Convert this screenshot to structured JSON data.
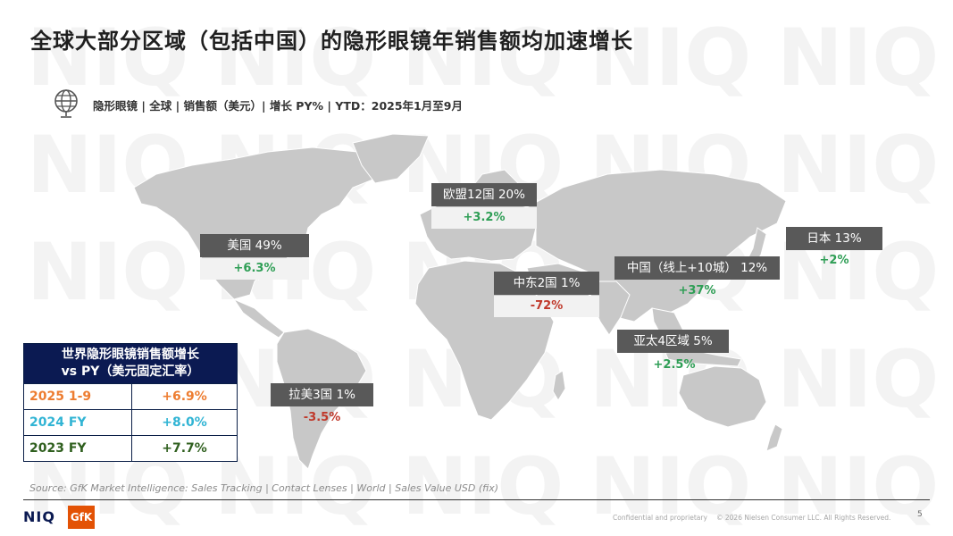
{
  "title": "全球大部分区域（包括中国）的隐形眼镜年销售额均加速增长",
  "subtitle": "隐形眼镜 | 全球 | 销售额（美元）| 增长 PY% | YTD：2025年1月至9月",
  "watermark": "NIQ",
  "icons": {
    "globe": "globe-icon",
    "niq_logo": "niq-logo",
    "gfk_logo": "gfk-logo"
  },
  "colors": {
    "positive": "#2e9e55",
    "negative": "#c0392b",
    "label_bg": "#595959",
    "map_land": "#c8c8c8",
    "table_header": "#0b1a52",
    "row_2025": "#ed7d31",
    "row_2024": "#31b4d4",
    "row_2023": "#2f5f1e"
  },
  "chart_data": {
    "type": "map",
    "regions": [
      {
        "name": "美国",
        "share": "49%",
        "growth": "+6.3%",
        "share_pct": 49,
        "growth_pct": 6.3
      },
      {
        "name": "欧盟12国",
        "share": "20%",
        "growth": "+3.2%",
        "share_pct": 20,
        "growth_pct": 3.2
      },
      {
        "name": "日本",
        "share": "13%",
        "growth": "+2%",
        "share_pct": 13,
        "growth_pct": 2
      },
      {
        "name": "中国（线上+10城）",
        "share": "12%",
        "growth": "+37%",
        "share_pct": 12,
        "growth_pct": 37
      },
      {
        "name": "中东2国",
        "share": "1%",
        "growth": "-72%",
        "share_pct": 1,
        "growth_pct": -72
      },
      {
        "name": "亚太4区域",
        "share": "5%",
        "growth": "+2.5%",
        "share_pct": 5,
        "growth_pct": 2.5
      },
      {
        "name": "拉美3国",
        "share": "1%",
        "growth": "-3.5%",
        "share_pct": 1,
        "growth_pct": -3.5
      }
    ]
  },
  "table": {
    "header": [
      "世界隐形眼镜销售额增长",
      "vs PY（美元固定汇率）"
    ],
    "rows": [
      {
        "period": "2025 1-9",
        "value": "+6.9%"
      },
      {
        "period": "2024 FY",
        "value": "+8.0%"
      },
      {
        "period": "2023 FY",
        "value": "+7.7%"
      }
    ]
  },
  "source": "Source: GfK Market Intelligence: Sales Tracking | Contact Lenses | World | Sales Value USD (fix)",
  "footer": {
    "confidential": "Confidential and proprietary",
    "copyright": "© 2026 Nielsen Consumer LLC. All Rights Reserved.",
    "page_number": "5",
    "niq": "NIQ",
    "gfk": "GfK"
  }
}
